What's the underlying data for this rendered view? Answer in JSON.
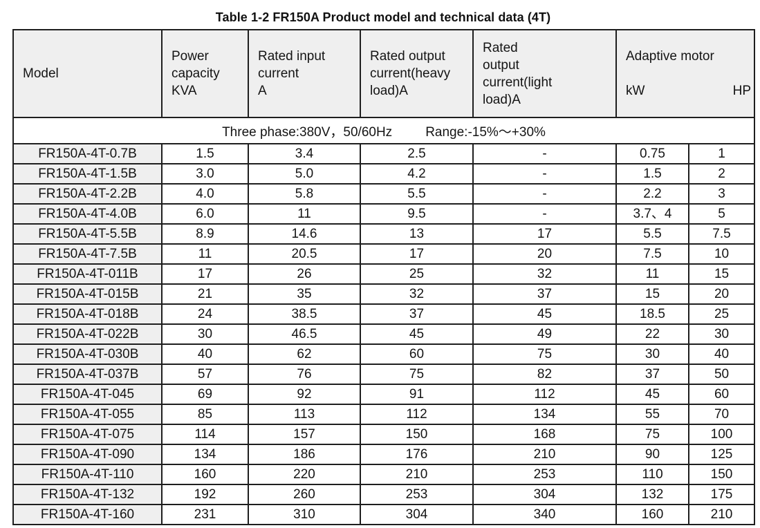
{
  "title": "Table 1-2 FR150A Product model and technical data (4T)",
  "table": {
    "header": {
      "model": "Model",
      "power_capacity": "Power\ncapacity\nKVA",
      "rated_input": "Rated input\ncurrent\nA",
      "rated_output_heavy": "Rated output\ncurrent(heavy\nload)A",
      "rated_output_light": "Rated\noutput\ncurrent(light\nload)A",
      "adaptive_motor": "Adaptive motor",
      "adaptive_motor_kw": "kW",
      "adaptive_motor_hp": "HP"
    },
    "subheader": {
      "supply": "Three phase:380V，50/60Hz",
      "range": "Range:-15%～+30%"
    },
    "rows": [
      [
        "FR150A-4T-0.7B",
        "1.5",
        "3.4",
        "2.5",
        "-",
        "0.75",
        "1"
      ],
      [
        "FR150A-4T-1.5B",
        "3.0",
        "5.0",
        "4.2",
        "-",
        "1.5",
        "2"
      ],
      [
        "FR150A-4T-2.2B",
        "4.0",
        "5.8",
        "5.5",
        "-",
        "2.2",
        "3"
      ],
      [
        "FR150A-4T-4.0B",
        "6.0",
        "11",
        "9.5",
        "-",
        "3.7、4",
        "5"
      ],
      [
        "FR150A-4T-5.5B",
        "8.9",
        "14.6",
        "13",
        "17",
        "5.5",
        "7.5"
      ],
      [
        "FR150A-4T-7.5B",
        "11",
        "20.5",
        "17",
        "20",
        "7.5",
        "10"
      ],
      [
        "FR150A-4T-011B",
        "17",
        "26",
        "25",
        "32",
        "11",
        "15"
      ],
      [
        "FR150A-4T-015B",
        "21",
        "35",
        "32",
        "37",
        "15",
        "20"
      ],
      [
        "FR150A-4T-018B",
        "24",
        "38.5",
        "37",
        "45",
        "18.5",
        "25"
      ],
      [
        "FR150A-4T-022B",
        "30",
        "46.5",
        "45",
        "49",
        "22",
        "30"
      ],
      [
        "FR150A-4T-030B",
        "40",
        "62",
        "60",
        "75",
        "30",
        "40"
      ],
      [
        "FR150A-4T-037B",
        "57",
        "76",
        "75",
        "82",
        "37",
        "50"
      ],
      [
        "FR150A-4T-045",
        "69",
        "92",
        "91",
        "112",
        "45",
        "60"
      ],
      [
        "FR150A-4T-055",
        "85",
        "113",
        "112",
        "134",
        "55",
        "70"
      ],
      [
        "FR150A-4T-075",
        "114",
        "157",
        "150",
        "168",
        "75",
        "100"
      ],
      [
        "FR150A-4T-090",
        "134",
        "186",
        "176",
        "210",
        "90",
        "125"
      ],
      [
        "FR150A-4T-110",
        "160",
        "220",
        "210",
        "253",
        "110",
        "150"
      ],
      [
        "FR150A-4T-132",
        "192",
        "260",
        "253",
        "304",
        "132",
        "175"
      ],
      [
        "FR150A-4T-160",
        "231",
        "310",
        "304",
        "340",
        "160",
        "210"
      ]
    ]
  },
  "colors": {
    "header_fill": "#efefef",
    "border": "#1e1e1e",
    "text": "#141414",
    "background": "#ffffff"
  }
}
